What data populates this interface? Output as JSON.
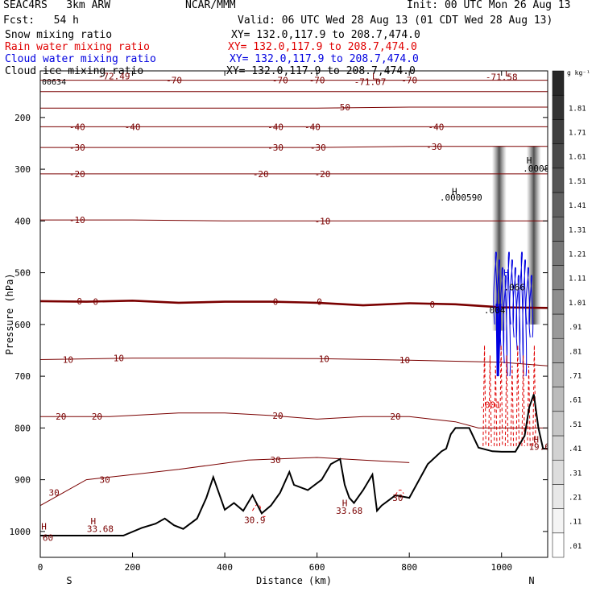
{
  "header": {
    "model": "SEAC4RS   3km ARW",
    "center": "NCAR/MMM",
    "init": "Init: 00 UTC Mon 26 Aug 13",
    "fcst": "Fcst:   54 h",
    "valid": "Valid: 06 UTC Wed 28 Aug 13 (01 CDT Wed 28 Aug 13)",
    "fields": [
      {
        "name": "Snow mixing ratio",
        "xy": "XY= 132.0,117.9 to 208.7,474.0",
        "color": "#000000"
      },
      {
        "name": "Rain water mixing ratio",
        "xy": "XY= 132.0,117.9 to 208.7,474.0",
        "color": "#e00000"
      },
      {
        "name": "Cloud water mixing ratio",
        "xy": "XY= 132.0,117.9 to 208.7,474.0",
        "color": "#0000e0"
      },
      {
        "name": "Cloud ice mixing ratio",
        "xy": "XY= 132.0,117.9 to 208.7,474.0",
        "color": "#000000"
      }
    ]
  },
  "chart_data": {
    "type": "contour cross-section",
    "xlabel": "Distance (km)",
    "ylabel": "Pressure (hPa)",
    "xlim": [
      0,
      1100
    ],
    "ylim": [
      1050,
      120
    ],
    "x_ticks": [
      0,
      200,
      400,
      600,
      800,
      1000
    ],
    "y_ticks": [
      200,
      300,
      400,
      500,
      600,
      700,
      800,
      900,
      1000
    ],
    "x_end_labels": {
      "left": "S",
      "right": "N"
    },
    "colorbar": {
      "unit": "g kg⁻¹",
      "levels": [
        ".01",
        ".11",
        ".21",
        ".31",
        ".41",
        ".51",
        ".61",
        ".71",
        ".81",
        ".91",
        "1.01",
        "1.11",
        "1.21",
        "1.31",
        "1.41",
        "1.51",
        "1.61",
        "1.71",
        "1.81"
      ]
    },
    "temperature_isotherms": [
      {
        "value": -70,
        "color": "#7a0000",
        "points": [
          [
            0,
            128
          ],
          [
            100,
            128
          ],
          [
            200,
            128
          ],
          [
            300,
            128
          ],
          [
            400,
            128
          ],
          [
            500,
            128
          ],
          [
            600,
            128
          ],
          [
            700,
            128
          ],
          [
            800,
            128
          ],
          [
            900,
            128
          ],
          [
            1100,
            128
          ]
        ]
      },
      {
        "value": -60,
        "color": "#7a0000",
        "points": [
          [
            0,
            150
          ],
          [
            200,
            150
          ],
          [
            400,
            150
          ],
          [
            600,
            150
          ],
          [
            800,
            150
          ],
          [
            1000,
            150
          ],
          [
            1100,
            150
          ]
        ]
      },
      {
        "value": -50,
        "color": "#7a0000",
        "points": [
          [
            0,
            182
          ],
          [
            200,
            182
          ],
          [
            400,
            182
          ],
          [
            600,
            182
          ],
          [
            800,
            180
          ],
          [
            1000,
            180
          ],
          [
            1100,
            180
          ]
        ]
      },
      {
        "value": -40,
        "color": "#7a0000",
        "points": [
          [
            0,
            218
          ],
          [
            200,
            218
          ],
          [
            400,
            218
          ],
          [
            600,
            218
          ],
          [
            800,
            218
          ],
          [
            1000,
            218
          ],
          [
            1100,
            218
          ]
        ]
      },
      {
        "value": -30,
        "color": "#7a0000",
        "points": [
          [
            0,
            258
          ],
          [
            200,
            258
          ],
          [
            400,
            258
          ],
          [
            600,
            258
          ],
          [
            800,
            256
          ],
          [
            1000,
            256
          ],
          [
            1100,
            256
          ]
        ]
      },
      {
        "value": -20,
        "color": "#7a0000",
        "points": [
          [
            0,
            309
          ],
          [
            200,
            309
          ],
          [
            400,
            309
          ],
          [
            600,
            309
          ],
          [
            800,
            309
          ],
          [
            1000,
            309
          ],
          [
            1100,
            309
          ]
        ]
      },
      {
        "value": -10,
        "color": "#7a0000",
        "points": [
          [
            0,
            398
          ],
          [
            200,
            398
          ],
          [
            400,
            400
          ],
          [
            600,
            400
          ],
          [
            800,
            400
          ],
          [
            1000,
            400
          ],
          [
            1100,
            400
          ]
        ]
      },
      {
        "value": 0,
        "color": "#7a0000",
        "points": [
          [
            0,
            555
          ],
          [
            100,
            556
          ],
          [
            200,
            554
          ],
          [
            300,
            558
          ],
          [
            400,
            556
          ],
          [
            500,
            556
          ],
          [
            600,
            558
          ],
          [
            700,
            563
          ],
          [
            800,
            559
          ],
          [
            900,
            561
          ],
          [
            1000,
            567
          ],
          [
            1100,
            568
          ]
        ]
      },
      {
        "value": 10,
        "color": "#7a0000",
        "points": [
          [
            0,
            668
          ],
          [
            200,
            665
          ],
          [
            400,
            665
          ],
          [
            600,
            666
          ],
          [
            800,
            669
          ],
          [
            900,
            671
          ],
          [
            1000,
            673
          ],
          [
            1100,
            680
          ]
        ]
      },
      {
        "value": 20,
        "color": "#7a0000",
        "points": [
          [
            0,
            778
          ],
          [
            150,
            778
          ],
          [
            300,
            771
          ],
          [
            400,
            771
          ],
          [
            500,
            776
          ],
          [
            600,
            783
          ],
          [
            700,
            778
          ],
          [
            800,
            778
          ],
          [
            900,
            788
          ],
          [
            950,
            800
          ],
          [
            1100,
            800
          ]
        ]
      },
      {
        "value": 30,
        "color": "#7a0000",
        "points": [
          [
            0,
            950
          ],
          [
            50,
            925
          ],
          [
            100,
            900
          ],
          [
            200,
            890
          ],
          [
            300,
            880
          ],
          [
            450,
            862
          ],
          [
            600,
            857
          ],
          [
            700,
            862
          ],
          [
            800,
            867
          ]
        ]
      }
    ],
    "terrain": {
      "color": "#000000",
      "points": [
        [
          0,
          1008
        ],
        [
          100,
          1008
        ],
        [
          180,
          1008
        ],
        [
          220,
          993
        ],
        [
          250,
          985
        ],
        [
          270,
          975
        ],
        [
          290,
          988
        ],
        [
          310,
          995
        ],
        [
          340,
          975
        ],
        [
          360,
          935
        ],
        [
          375,
          895
        ],
        [
          400,
          958
        ],
        [
          420,
          945
        ],
        [
          440,
          960
        ],
        [
          460,
          930
        ],
        [
          480,
          965
        ],
        [
          500,
          950
        ],
        [
          520,
          925
        ],
        [
          540,
          885
        ],
        [
          550,
          910
        ],
        [
          580,
          920
        ],
        [
          610,
          900
        ],
        [
          630,
          870
        ],
        [
          650,
          860
        ],
        [
          660,
          910
        ],
        [
          670,
          935
        ],
        [
          680,
          945
        ],
        [
          700,
          920
        ],
        [
          720,
          890
        ],
        [
          730,
          960
        ],
        [
          740,
          950
        ],
        [
          770,
          930
        ],
        [
          800,
          935
        ],
        [
          840,
          870
        ],
        [
          870,
          845
        ],
        [
          880,
          840
        ],
        [
          890,
          812
        ],
        [
          900,
          800
        ],
        [
          930,
          800
        ],
        [
          950,
          838
        ],
        [
          980,
          845
        ],
        [
          1000,
          846
        ],
        [
          1030,
          846
        ],
        [
          1050,
          815
        ],
        [
          1060,
          760
        ],
        [
          1070,
          735
        ],
        [
          1080,
          800
        ],
        [
          1090,
          840
        ],
        [
          1100,
          840
        ]
      ]
    },
    "labels": [
      {
        "text": "-72.49",
        "x": 160,
        "y": 120,
        "color": "#7a0000"
      },
      {
        "text": "-70",
        "x": 290,
        "y": 128,
        "color": "#7a0000"
      },
      {
        "text": "-70",
        "x": 520,
        "y": 128,
        "color": "#7a0000"
      },
      {
        "text": "-70",
        "x": 600,
        "y": 128,
        "color": "#7a0000"
      },
      {
        "text": "-70",
        "x": 800,
        "y": 128,
        "color": "#7a0000"
      },
      {
        "text": "L",
        "x": 725,
        "y": 120,
        "color": "#7a0000"
      },
      {
        "text": "-71.07",
        "x": 715,
        "y": 131,
        "color": "#7a0000"
      },
      {
        "text": "L",
        "x": 1013,
        "y": 114,
        "color": "#7a0000"
      },
      {
        "text": "-71.58",
        "x": 1000,
        "y": 122,
        "color": "#7a0000"
      },
      {
        "text": "-50",
        "x": 655,
        "y": 180,
        "color": "#7a0000"
      },
      {
        "text": "-40",
        "x": 80,
        "y": 218,
        "color": "#7a0000"
      },
      {
        "text": "-40",
        "x": 200,
        "y": 218,
        "color": "#7a0000"
      },
      {
        "text": "-40",
        "x": 510,
        "y": 218,
        "color": "#7a0000"
      },
      {
        "text": "-40",
        "x": 590,
        "y": 218,
        "color": "#7a0000"
      },
      {
        "text": "-40",
        "x": 858,
        "y": 218,
        "color": "#7a0000"
      },
      {
        "text": "-30",
        "x": 80,
        "y": 258,
        "color": "#7a0000"
      },
      {
        "text": "-30",
        "x": 510,
        "y": 258,
        "color": "#7a0000"
      },
      {
        "text": "-30",
        "x": 602,
        "y": 258,
        "color": "#7a0000"
      },
      {
        "text": "-30",
        "x": 854,
        "y": 256,
        "color": "#7a0000"
      },
      {
        "text": "-20",
        "x": 80,
        "y": 309,
        "color": "#7a0000"
      },
      {
        "text": "-20",
        "x": 478,
        "y": 309,
        "color": "#7a0000"
      },
      {
        "text": "-20",
        "x": 612,
        "y": 309,
        "color": "#7a0000"
      },
      {
        "text": "-10",
        "x": 80,
        "y": 398,
        "color": "#7a0000"
      },
      {
        "text": "-10",
        "x": 612,
        "y": 400,
        "color": "#7a0000"
      },
      {
        "text": "0",
        "x": 85,
        "y": 555,
        "color": "#7a0000"
      },
      {
        "text": "0",
        "x": 120,
        "y": 556,
        "color": "#7a0000"
      },
      {
        "text": "0",
        "x": 510,
        "y": 556,
        "color": "#7a0000"
      },
      {
        "text": "0",
        "x": 605,
        "y": 556,
        "color": "#7a0000"
      },
      {
        "text": "0",
        "x": 850,
        "y": 561,
        "color": "#7a0000"
      },
      {
        "text": "10",
        "x": 60,
        "y": 668,
        "color": "#7a0000"
      },
      {
        "text": "10",
        "x": 170,
        "y": 665,
        "color": "#7a0000"
      },
      {
        "text": "10",
        "x": 615,
        "y": 666,
        "color": "#7a0000"
      },
      {
        "text": "10",
        "x": 790,
        "y": 669,
        "color": "#7a0000"
      },
      {
        "text": "20",
        "x": 45,
        "y": 778,
        "color": "#7a0000"
      },
      {
        "text": "20",
        "x": 123,
        "y": 778,
        "color": "#7a0000"
      },
      {
        "text": "20",
        "x": 515,
        "y": 776,
        "color": "#7a0000"
      },
      {
        "text": "20",
        "x": 770,
        "y": 778,
        "color": "#7a0000"
      },
      {
        "text": "30",
        "x": 30,
        "y": 925,
        "color": "#7a0000"
      },
      {
        "text": "30",
        "x": 140,
        "y": 900,
        "color": "#7a0000"
      },
      {
        "text": "30",
        "x": 510,
        "y": 862,
        "color": "#7a0000"
      },
      {
        "text": "30",
        "x": 775,
        "y": 935,
        "color": "#7a0000"
      },
      {
        "text": "H",
        "x": 8,
        "y": 990,
        "color": "#7a0000"
      },
      {
        "text": "2.60",
        "x": 5,
        "y": 1012,
        "color": "#7a0000"
      },
      {
        "text": "H",
        "x": 115,
        "y": 980,
        "color": "#7a0000"
      },
      {
        "text": "33.68",
        "x": 130,
        "y": 995,
        "color": "#7a0000"
      },
      {
        "text": "H",
        "x": 660,
        "y": 945,
        "color": "#7a0000"
      },
      {
        "text": "33.68",
        "x": 670,
        "y": 960,
        "color": "#7a0000"
      },
      {
        "text": "30.9",
        "x": 465,
        "y": 978,
        "color": "#7a0000"
      },
      {
        "text": "H",
        "x": 1075,
        "y": 822,
        "color": "#7a0000"
      },
      {
        "text": "19.6",
        "x": 1082,
        "y": 836,
        "color": "#7a0000"
      },
      {
        "text": ".001",
        "x": 975,
        "y": 755,
        "color": "#e00000"
      },
      {
        "text": "H",
        "x": 898,
        "y": 343,
        "color": "#000000"
      },
      {
        "text": ".0000590",
        "x": 912,
        "y": 354,
        "color": "#000000"
      },
      {
        "text": "H",
        "x": 1060,
        "y": 283,
        "color": "#000000"
      },
      {
        "text": ".0008",
        "x": 1075,
        "y": 298,
        "color": "#000000"
      },
      {
        "text": ".004",
        "x": 985,
        "y": 572,
        "color": "#000000"
      },
      {
        "text": "H",
        "x": 1010,
        "y": 500,
        "color": "#0000e0"
      },
      {
        "text": ".066",
        "x": 1028,
        "y": 528,
        "color": "#000000"
      }
    ],
    "top_left_value": "00634"
  }
}
